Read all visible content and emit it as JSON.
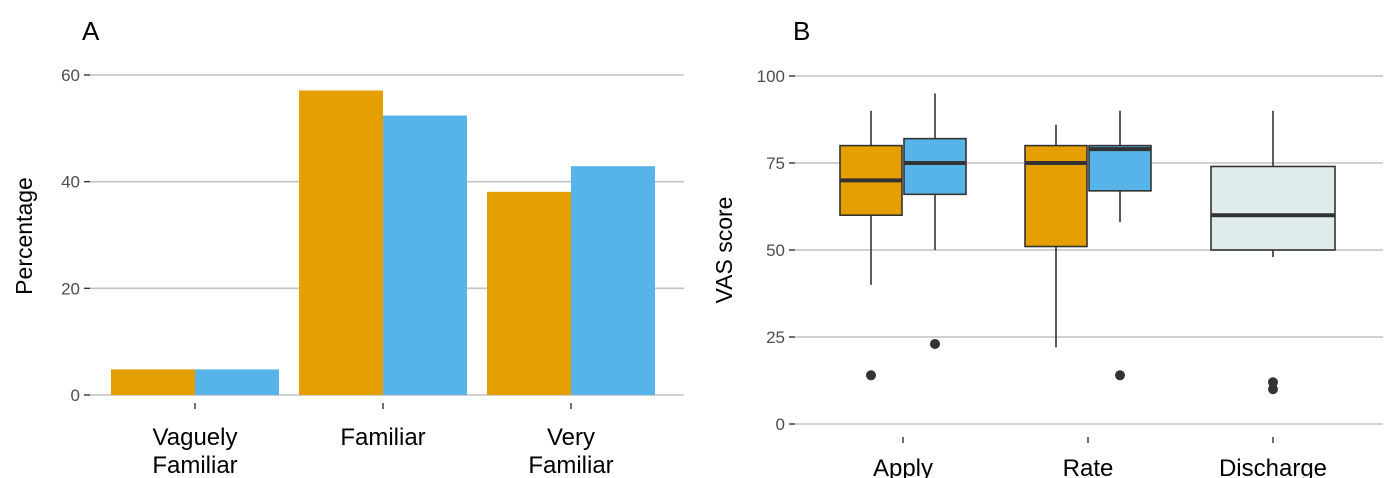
{
  "colors": {
    "series1": "#E69F00",
    "series2": "#56B4E9",
    "series3": "#E0ECEC",
    "grid": "#C2C2C2",
    "ink": "#333333"
  },
  "chart_data": [
    {
      "panel": "A",
      "type": "bar",
      "title": "",
      "xlabel": "",
      "ylabel": "Percentage",
      "ylim": [
        0,
        62
      ],
      "yticks": [
        0,
        20,
        40,
        60
      ],
      "grid": "horizontal",
      "legend": "none",
      "categories": [
        [
          "Vaguely",
          "Familiar"
        ],
        [
          "Familiar"
        ],
        [
          "Very",
          "Familiar"
        ]
      ],
      "series": [
        {
          "values": [
            4.8,
            57.1,
            38.1
          ]
        },
        {
          "values": [
            4.8,
            52.4,
            42.9
          ]
        }
      ]
    },
    {
      "panel": "B",
      "type": "box",
      "title": "",
      "xlabel": "",
      "ylabel": "VAS score",
      "ylim": [
        0,
        100
      ],
      "yticks": [
        0,
        25,
        50,
        75,
        100
      ],
      "grid": "horizontal",
      "legend": "none",
      "categories": [
        [
          "Apply"
        ],
        [
          "Rate"
        ],
        [
          "Discharge"
        ]
      ],
      "boxes": [
        {
          "category": 0,
          "series": 0,
          "min": 40,
          "q1": 60,
          "median": 70,
          "q3": 80,
          "max": 90,
          "outliers": [
            14
          ]
        },
        {
          "category": 0,
          "series": 1,
          "min": 50,
          "q1": 66,
          "median": 75,
          "q3": 82,
          "max": 95,
          "outliers": [
            23
          ]
        },
        {
          "category": 1,
          "series": 0,
          "min": 22,
          "q1": 51,
          "median": 75,
          "q3": 80,
          "max": 86,
          "outliers": []
        },
        {
          "category": 1,
          "series": 1,
          "min": 58,
          "q1": 67,
          "median": 79,
          "q3": 80,
          "max": 90,
          "outliers": [
            14
          ]
        },
        {
          "category": 2,
          "series": 2,
          "min": 48,
          "q1": 50,
          "median": 60,
          "q3": 74,
          "max": 90,
          "outliers": [
            10,
            12
          ]
        }
      ]
    }
  ]
}
